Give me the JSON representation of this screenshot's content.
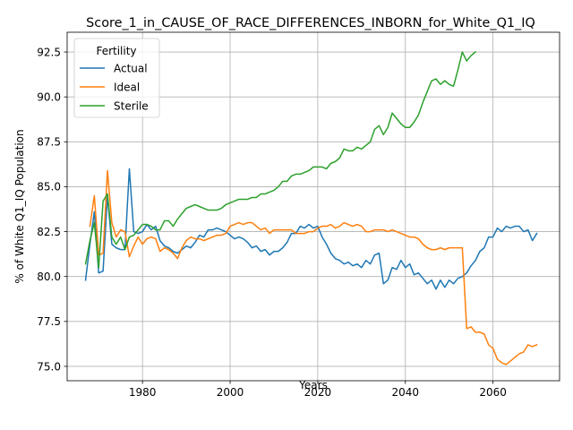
{
  "chart_data": {
    "type": "line",
    "title": "Score_1_in_CAUSE_OF_RACE_DIFFERENCES_INBORN_for_White_Q1_IQ",
    "xlabel": "Years",
    "ylabel": "% of White Q1_IQ Population",
    "xlim": [
      1962.8,
      2075.2
    ],
    "ylim": [
      74.2,
      93.6
    ],
    "xticks": [
      1980,
      2000,
      2020,
      2040,
      2060
    ],
    "yticks": [
      75.0,
      77.5,
      80.0,
      82.5,
      85.0,
      87.5,
      90.0,
      92.5
    ],
    "xtick_labels": [
      "1980",
      "2000",
      "2020",
      "2040",
      "2060"
    ],
    "ytick_labels": [
      "75.0",
      "77.5",
      "80.0",
      "82.5",
      "85.0",
      "87.5",
      "90.0",
      "92.5"
    ],
    "grid": true,
    "legend": {
      "title": "Fertility",
      "position": "top-left"
    },
    "series": [
      {
        "name": "Actual",
        "color": "#1f77b4",
        "x": [
          1967,
          1968,
          1969,
          1970,
          1971,
          1972,
          1973,
          1974,
          1975,
          1976,
          1977,
          1978,
          1979,
          1980,
          1981,
          1982,
          1983,
          1984,
          1985,
          1986,
          1987,
          1988,
          1989,
          1990,
          1991,
          1992,
          1993,
          1994,
          1995,
          1996,
          1997,
          1998,
          1999,
          2000,
          2001,
          2002,
          2003,
          2004,
          2005,
          2006,
          2007,
          2008,
          2009,
          2010,
          2011,
          2012,
          2013,
          2014,
          2015,
          2016,
          2017,
          2018,
          2019,
          2020,
          2021,
          2022,
          2023,
          2024,
          2025,
          2026,
          2027,
          2028,
          2029,
          2030,
          2031,
          2032,
          2033,
          2034,
          2035,
          2036,
          2037,
          2038,
          2039,
          2040,
          2041,
          2042,
          2043,
          2044,
          2045,
          2046,
          2047,
          2048,
          2049,
          2050,
          2051,
          2052,
          2053,
          2054,
          2055,
          2056,
          2057,
          2058,
          2059,
          2060,
          2061,
          2062,
          2063,
          2064,
          2065,
          2066,
          2067,
          2068,
          2069,
          2070
        ],
        "y": [
          79.8,
          81.8,
          83.6,
          80.2,
          80.3,
          84.5,
          81.8,
          81.6,
          81.5,
          81.5,
          86.0,
          82.5,
          82.4,
          82.5,
          82.9,
          82.6,
          82.8,
          82.0,
          81.7,
          81.6,
          81.4,
          81.3,
          81.5,
          81.7,
          81.6,
          81.9,
          82.3,
          82.2,
          82.6,
          82.6,
          82.7,
          82.6,
          82.5,
          82.3,
          82.1,
          82.2,
          82.1,
          81.9,
          81.6,
          81.7,
          81.4,
          81.5,
          81.2,
          81.4,
          81.4,
          81.6,
          81.9,
          82.4,
          82.4,
          82.8,
          82.7,
          82.9,
          82.7,
          82.8,
          82.2,
          81.8,
          81.3,
          81.0,
          80.9,
          80.7,
          80.8,
          80.6,
          80.7,
          80.5,
          80.9,
          80.7,
          81.2,
          81.3,
          79.6,
          79.8,
          80.5,
          80.4,
          80.9,
          80.5,
          80.7,
          80.1,
          80.2,
          79.9,
          79.6,
          79.8,
          79.3,
          79.8,
          79.4,
          79.8,
          79.6,
          79.9,
          80.0,
          80.2,
          80.6,
          80.9,
          81.4,
          81.6,
          82.2,
          82.2,
          82.7,
          82.5,
          82.8,
          82.7,
          82.8,
          82.8,
          82.5,
          82.6,
          82.0,
          82.4
        ]
      },
      {
        "name": "Ideal",
        "color": "#ff7f0e",
        "x": [
          1968,
          1969,
          1970,
          1971,
          1972,
          1973,
          1974,
          1975,
          1976,
          1977,
          1978,
          1979,
          1980,
          1981,
          1982,
          1983,
          1984,
          1985,
          1986,
          1987,
          1988,
          1989,
          1990,
          1991,
          1992,
          1993,
          1994,
          1995,
          1996,
          1997,
          1998,
          1999,
          2000,
          2001,
          2002,
          2003,
          2004,
          2005,
          2006,
          2007,
          2008,
          2009,
          2010,
          2011,
          2012,
          2013,
          2014,
          2015,
          2016,
          2017,
          2018,
          2019,
          2020,
          2021,
          2022,
          2023,
          2024,
          2025,
          2026,
          2027,
          2028,
          2029,
          2030,
          2031,
          2032,
          2033,
          2034,
          2035,
          2036,
          2037,
          2038,
          2039,
          2040,
          2041,
          2042,
          2043,
          2044,
          2045,
          2046,
          2047,
          2048,
          2049,
          2050,
          2051,
          2052,
          2053,
          2054,
          2055,
          2056,
          2057,
          2058,
          2059,
          2060,
          2061,
          2062,
          2063,
          2064,
          2065,
          2066,
          2067,
          2068,
          2069,
          2070
        ],
        "y": [
          82.8,
          84.5,
          81.2,
          81.3,
          85.9,
          83.0,
          82.2,
          82.6,
          82.5,
          81.1,
          81.7,
          82.2,
          81.8,
          82.1,
          82.2,
          82.1,
          81.4,
          81.6,
          81.5,
          81.3,
          81.0,
          81.6,
          82.0,
          82.2,
          82.1,
          82.1,
          82.0,
          82.1,
          82.2,
          82.3,
          82.3,
          82.4,
          82.8,
          82.9,
          83.0,
          82.9,
          83.0,
          83.0,
          82.8,
          82.6,
          82.7,
          82.4,
          82.6,
          82.6,
          82.6,
          82.6,
          82.6,
          82.4,
          82.4,
          82.4,
          82.5,
          82.5,
          82.7,
          82.8,
          82.8,
          82.9,
          82.7,
          82.8,
          83.0,
          82.9,
          82.8,
          82.9,
          82.8,
          82.5,
          82.5,
          82.6,
          82.6,
          82.6,
          82.5,
          82.6,
          82.5,
          82.4,
          82.3,
          82.2,
          82.2,
          82.1,
          81.8,
          81.6,
          81.5,
          81.5,
          81.6,
          81.5,
          81.6,
          81.6,
          81.6,
          81.6,
          77.1,
          77.2,
          76.9,
          76.9,
          76.8,
          76.2,
          76.0,
          75.4,
          75.2,
          75.1,
          75.3,
          75.5,
          75.7,
          75.8,
          76.2,
          76.1,
          76.2
        ]
      },
      {
        "name": "Sterile",
        "color": "#2ca02c",
        "x": [
          1967,
          1968,
          1969,
          1970,
          1971,
          1972,
          1973,
          1974,
          1975,
          1976,
          1977,
          1978,
          1979,
          1980,
          1981,
          1982,
          1983,
          1984,
          1985,
          1986,
          1987,
          1988,
          1989,
          1990,
          1991,
          1992,
          1993,
          1994,
          1995,
          1996,
          1997,
          1998,
          1999,
          2000,
          2001,
          2002,
          2003,
          2004,
          2005,
          2006,
          2007,
          2008,
          2009,
          2010,
          2011,
          2012,
          2013,
          2014,
          2015,
          2016,
          2017,
          2018,
          2019,
          2020,
          2021,
          2022,
          2023,
          2024,
          2025,
          2026,
          2027,
          2028,
          2029,
          2030,
          2031,
          2032,
          2033,
          2034,
          2035,
          2036,
          2037,
          2038,
          2039,
          2040,
          2041,
          2042,
          2043,
          2044,
          2045,
          2046,
          2047,
          2048,
          2049,
          2050,
          2051,
          2052,
          2053,
          2054,
          2055,
          2056
        ],
        "y": [
          80.7,
          82.0,
          83.0,
          80.5,
          84.2,
          84.6,
          82.2,
          81.8,
          82.2,
          81.5,
          82.2,
          82.3,
          82.6,
          82.9,
          82.9,
          82.8,
          82.6,
          82.6,
          83.1,
          83.1,
          82.8,
          83.2,
          83.5,
          83.8,
          83.9,
          84.0,
          83.9,
          83.8,
          83.7,
          83.7,
          83.7,
          83.8,
          84.0,
          84.1,
          84.2,
          84.3,
          84.3,
          84.3,
          84.4,
          84.4,
          84.6,
          84.6,
          84.7,
          84.8,
          85.0,
          85.3,
          85.3,
          85.6,
          85.7,
          85.7,
          85.8,
          85.9,
          86.1,
          86.1,
          86.1,
          86.0,
          86.3,
          86.4,
          86.6,
          87.1,
          87.0,
          87.0,
          87.2,
          87.1,
          87.3,
          87.5,
          88.2,
          88.4,
          87.9,
          88.3,
          89.1,
          88.8,
          88.5,
          88.3,
          88.3,
          88.6,
          89.0,
          89.7,
          90.3,
          90.9,
          91.0,
          90.7,
          90.9,
          90.7,
          90.6,
          91.5,
          92.5,
          92.0,
          92.3,
          92.5
        ]
      }
    ]
  }
}
